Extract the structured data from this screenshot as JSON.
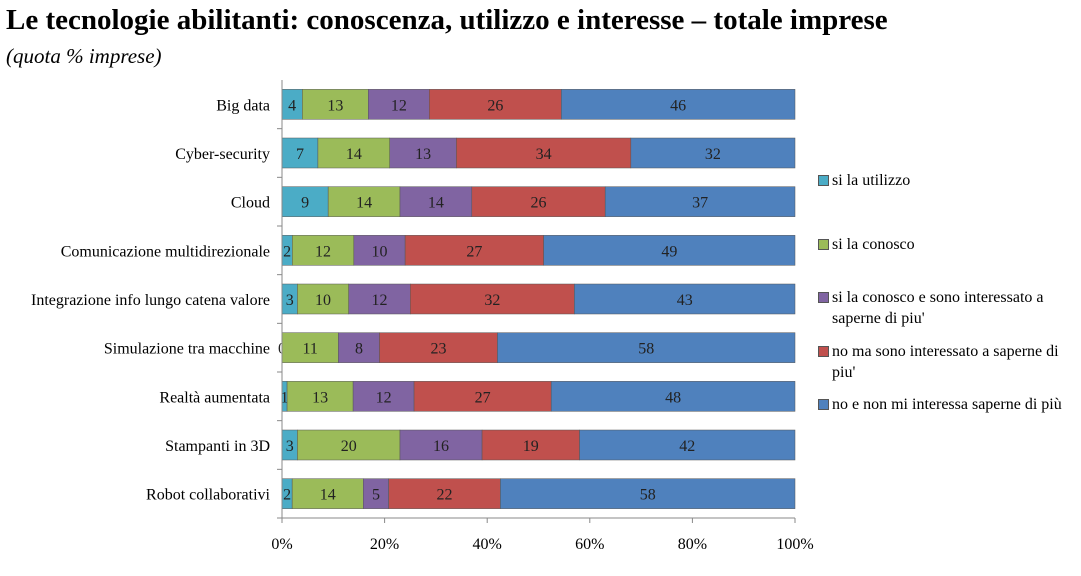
{
  "title": "Le tecnologie abilitanti: conoscenza, utilizzo e interesse – totale imprese",
  "subtitle": "(quota % imprese)",
  "colors": [
    "#4bacc6",
    "#9bbb59",
    "#8064a2",
    "#c0504d",
    "#4f81bd"
  ],
  "chart_data": {
    "type": "bar",
    "orientation": "horizontal",
    "stacked": "percent",
    "title": "",
    "xlabel": "",
    "ylabel": "",
    "xlim": [
      0,
      100
    ],
    "x_ticks": [
      "0%",
      "20%",
      "40%",
      "60%",
      "80%",
      "100%"
    ],
    "grid": false,
    "legend_position": "right",
    "categories": [
      "Big data",
      "Cyber-security",
      "Cloud",
      "Comunicazione multidirezionale",
      "Integrazione info lungo catena valore",
      "Simulazione tra macchine",
      "Realtà aumentata",
      "Stampanti in 3D",
      "Robot collaborativi"
    ],
    "series": [
      {
        "name": "si la utilizzo",
        "values": [
          4,
          7,
          9,
          2,
          3,
          0,
          1,
          3,
          2
        ]
      },
      {
        "name": "si la conosco",
        "values": [
          13,
          14,
          14,
          12,
          10,
          11,
          13,
          20,
          14
        ]
      },
      {
        "name": "si la conosco e sono interessato a saperne di piu'",
        "values": [
          12,
          13,
          14,
          10,
          12,
          8,
          12,
          16,
          5
        ]
      },
      {
        "name": "no ma sono interessato a saperne di piu'",
        "values": [
          26,
          34,
          26,
          27,
          32,
          23,
          27,
          19,
          22
        ]
      },
      {
        "name": "no e non mi interessa saperne di più",
        "values": [
          46,
          32,
          37,
          49,
          43,
          58,
          48,
          42,
          58
        ]
      }
    ]
  }
}
